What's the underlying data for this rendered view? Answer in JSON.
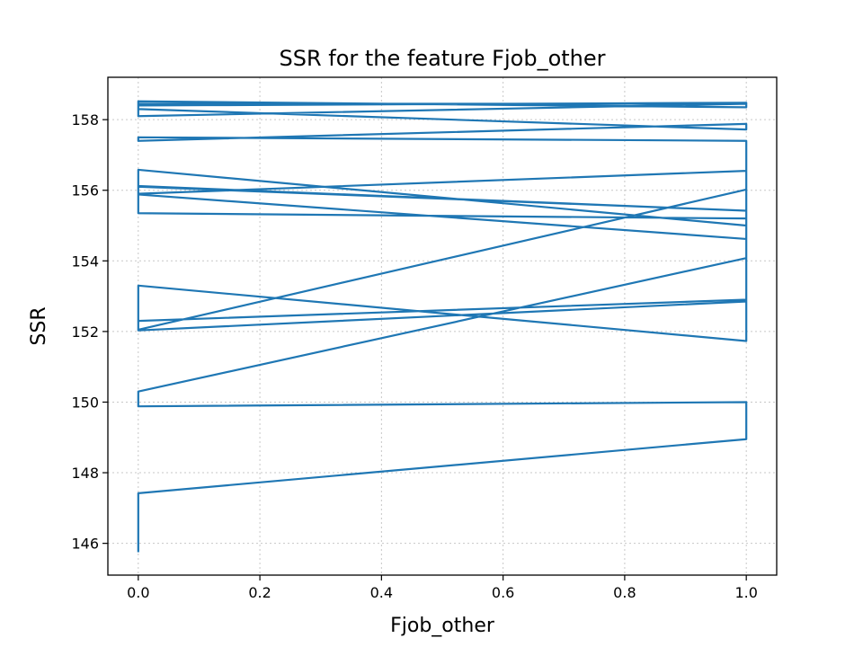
{
  "chart_data": {
    "type": "line",
    "title": "SSR for the feature Fjob_other",
    "xlabel": "Fjob_other",
    "ylabel": "SSR",
    "xlim": [
      -0.05,
      1.05
    ],
    "ylim": [
      145.1,
      159.2
    ],
    "xticks": [
      0.0,
      0.2,
      0.4,
      0.6,
      0.8,
      1.0
    ],
    "xtick_labels": [
      "0.0",
      "0.2",
      "0.4",
      "0.6",
      "0.8",
      "1.0"
    ],
    "yticks": [
      146,
      148,
      150,
      152,
      154,
      156,
      158
    ],
    "ytick_labels": [
      "146",
      "148",
      "150",
      "152",
      "154",
      "156",
      "158"
    ],
    "grid": true,
    "color": "#1f77b4",
    "series": [
      {
        "x": [
          0,
          0,
          1,
          1,
          0,
          0,
          1,
          1,
          0,
          0,
          1,
          1,
          0,
          0,
          1,
          1,
          0,
          0,
          1,
          1,
          0,
          0,
          1,
          1,
          0,
          0,
          1,
          1,
          0,
          0,
          1,
          1,
          0,
          0,
          1,
          1,
          0,
          0,
          1,
          1,
          0
        ],
        "y": [
          145.75,
          147.42,
          148.95,
          150.0,
          149.88,
          150.3,
          154.08,
          151.73,
          153.3,
          152.05,
          156.02,
          154.62,
          155.88,
          156.12,
          155.42,
          152.9,
          152.3,
          152.03,
          152.85,
          155.2,
          155.35,
          155.9,
          156.55,
          155.42,
          156.1,
          156.58,
          155.0,
          157.4,
          157.5,
          157.4,
          157.88,
          157.72,
          158.3,
          158.4,
          158.48,
          158.35,
          158.52,
          158.1,
          158.45,
          158.45,
          158.45
        ]
      }
    ]
  }
}
